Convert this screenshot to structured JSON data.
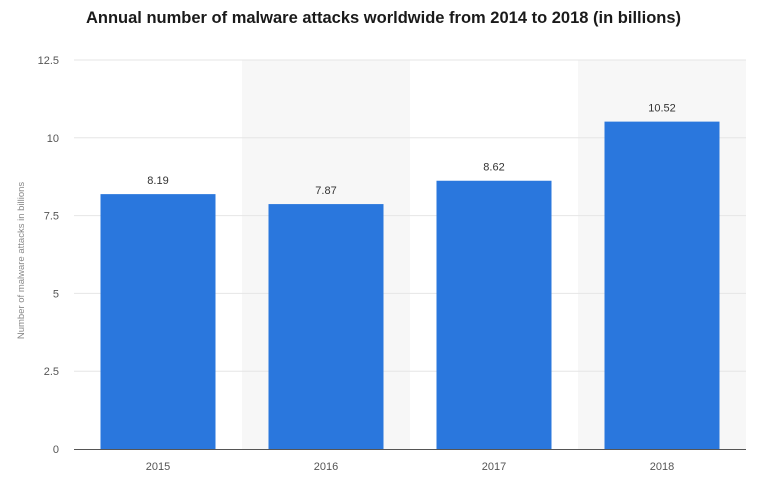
{
  "chart_data": {
    "type": "bar",
    "title": "Annual number of malware attacks worldwide from 2014 to 2018 (in billions)",
    "xlabel": "",
    "ylabel": "Number of malware attacks in billions",
    "categories": [
      "2015",
      "2016",
      "2017",
      "2018"
    ],
    "values": [
      8.19,
      7.87,
      8.62,
      10.52
    ],
    "value_labels": [
      "8.19",
      "7.87",
      "8.62",
      "10.52"
    ],
    "ylim": [
      0,
      12.5
    ],
    "yticks": [
      0,
      2.5,
      5,
      7.5,
      10,
      12.5
    ],
    "ytick_labels": [
      "0",
      "2.5",
      "5",
      "7.5",
      "10",
      "12.5"
    ],
    "grid": true,
    "legend": "none",
    "colors": {
      "bar": "#2a77dd",
      "band": "#f7f7f7",
      "grid": "#e6e6e6",
      "axis": "#555555"
    }
  }
}
